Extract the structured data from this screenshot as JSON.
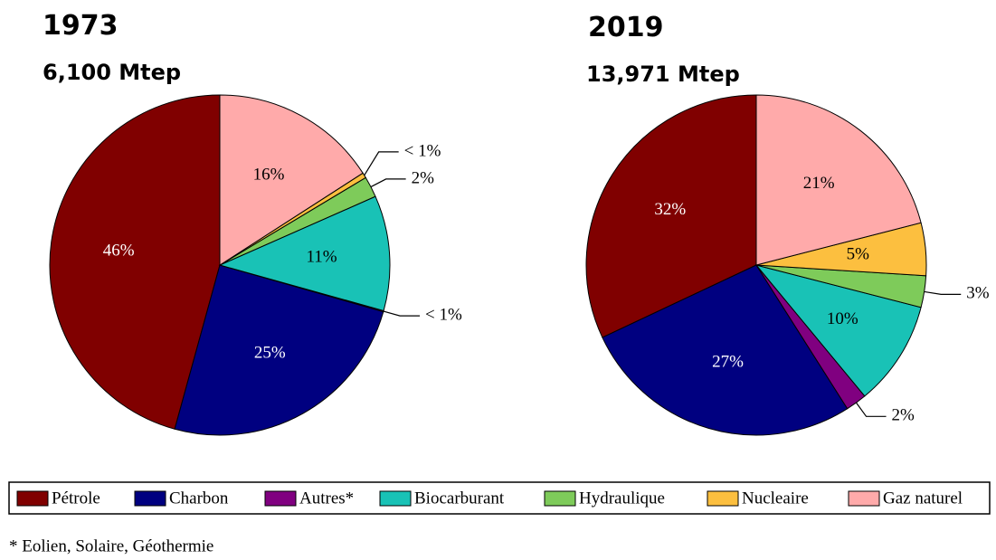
{
  "chart_data": [
    {
      "type": "pie",
      "title": "1973",
      "subtitle": "6,100 Mtep",
      "categories": [
        "Pétrole",
        "Charbon",
        "Autres*",
        "Biocarburant",
        "Hydraulique",
        "Nucleaire",
        "Gaz naturel"
      ],
      "values": [
        46,
        25,
        0.1,
        11,
        2,
        0.5,
        16
      ],
      "value_labels": [
        "46%",
        "25%",
        "< 1%",
        "11%",
        "2%",
        "< 1%",
        "16%"
      ],
      "colors": [
        "#800000",
        "#000080",
        "#800080",
        "#19c2b6",
        "#7ecb5a",
        "#fcbf3f",
        "#ffaaaa"
      ]
    },
    {
      "type": "pie",
      "title": "2019",
      "subtitle": "13,971 Mtep",
      "categories": [
        "Pétrole",
        "Charbon",
        "Autres*",
        "Biocarburant",
        "Hydraulique",
        "Nucleaire",
        "Gaz naturel"
      ],
      "values": [
        32,
        27,
        2,
        10,
        3,
        5,
        21
      ],
      "value_labels": [
        "32%",
        "27%",
        "2%",
        "10%",
        "3%",
        "5%",
        "21%"
      ],
      "colors": [
        "#800000",
        "#000080",
        "#800080",
        "#19c2b6",
        "#7ecb5a",
        "#fcbf3f",
        "#ffaaaa"
      ]
    }
  ],
  "footnote": "* Eolien, Solaire, Géothermie"
}
